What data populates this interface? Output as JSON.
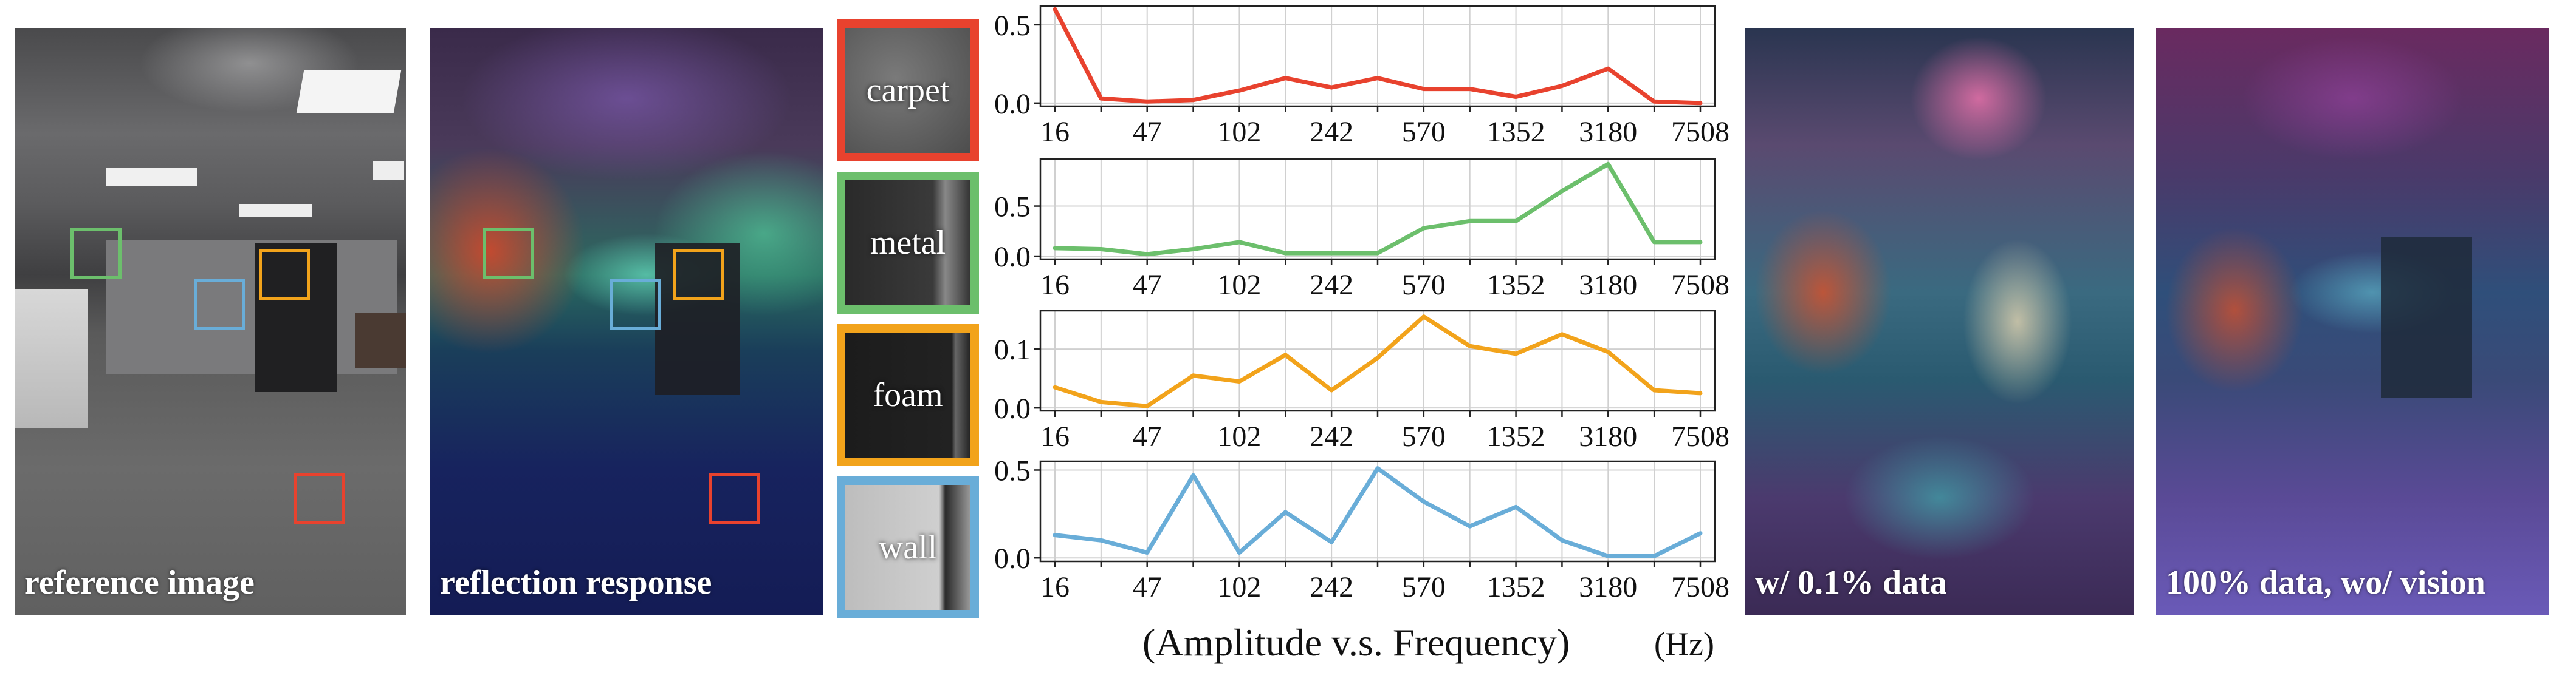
{
  "panels": {
    "reference": {
      "caption": "reference image"
    },
    "reflection": {
      "caption": "reflection response"
    },
    "low_data": {
      "caption": "w/ 0.1% data"
    },
    "no_vision": {
      "caption": "100% data, wo/ vision"
    }
  },
  "roi_colors": {
    "carpet": "#e8422e",
    "metal": "#6cbf6c",
    "foam": "#f2a31b",
    "wall": "#69add8"
  },
  "materials": [
    {
      "label": "carpet",
      "color": "#e8422e"
    },
    {
      "label": "metal",
      "color": "#6cbf6c"
    },
    {
      "label": "foam",
      "color": "#f2a31b"
    },
    {
      "label": "wall",
      "color": "#69add8"
    }
  ],
  "chart_caption": "(Amplitude v.s. Frequency)",
  "chart_unit": "(Hz)",
  "chart_data": {
    "type": "line",
    "x_tick_labels": [
      "16",
      "47",
      "102",
      "242",
      "570",
      "1352",
      "3180",
      "7508"
    ],
    "grid": true,
    "xlabel": "(Amplitude v.s. Frequency)",
    "x_unit": "(Hz)",
    "series": [
      {
        "name": "carpet",
        "color": "#e8422e",
        "ylim": [
          -0.02,
          0.62
        ],
        "yticks": [
          0.0,
          0.5
        ],
        "ytick_labels": [
          "0.0",
          "0.5"
        ],
        "values": [
          0.6,
          0.03,
          0.01,
          0.02,
          0.08,
          0.16,
          0.1,
          0.16,
          0.09,
          0.09,
          0.04,
          0.11,
          0.22,
          0.01,
          0.0
        ]
      },
      {
        "name": "metal",
        "color": "#6cbf6c",
        "ylim": [
          -0.03,
          0.97
        ],
        "yticks": [
          0.0,
          0.5
        ],
        "ytick_labels": [
          "0.0",
          "0.5"
        ],
        "values": [
          0.08,
          0.07,
          0.02,
          0.07,
          0.14,
          0.03,
          0.03,
          0.03,
          0.28,
          0.35,
          0.35,
          0.65,
          0.92,
          0.14,
          0.14
        ]
      },
      {
        "name": "foam",
        "color": "#f2a31b",
        "ylim": [
          -0.005,
          0.165
        ],
        "yticks": [
          0.0,
          0.1
        ],
        "ytick_labels": [
          "0.0",
          "0.1"
        ],
        "values": [
          0.035,
          0.01,
          0.003,
          0.055,
          0.045,
          0.09,
          0.03,
          0.085,
          0.155,
          0.105,
          0.092,
          0.125,
          0.095,
          0.03,
          0.025
        ]
      },
      {
        "name": "wall",
        "color": "#69add8",
        "ylim": [
          -0.02,
          0.55
        ],
        "yticks": [
          0.0,
          0.5
        ],
        "ytick_labels": [
          "0.0",
          "0.5"
        ],
        "values": [
          0.13,
          0.1,
          0.03,
          0.47,
          0.03,
          0.26,
          0.09,
          0.51,
          0.32,
          0.18,
          0.29,
          0.1,
          0.01,
          0.01,
          0.14
        ]
      }
    ]
  }
}
